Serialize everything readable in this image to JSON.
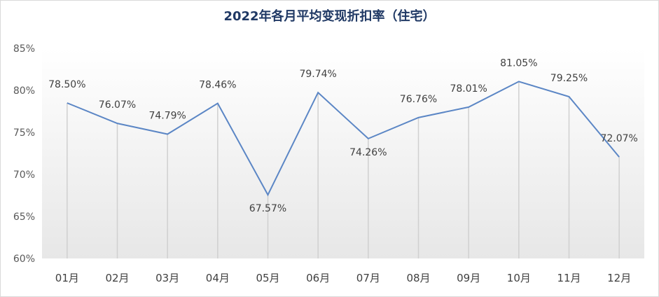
{
  "chart_data": {
    "type": "line",
    "title": "2022年各月平均变现折扣率（住宅）",
    "categories": [
      "01月",
      "02月",
      "03月",
      "04月",
      "05月",
      "06月",
      "07月",
      "08月",
      "09月",
      "10月",
      "11月",
      "12月"
    ],
    "series": [
      {
        "values": [
          78.5,
          76.07,
          74.79,
          78.46,
          67.57,
          79.74,
          74.26,
          76.76,
          78.01,
          81.05,
          79.25,
          72.07
        ]
      }
    ],
    "data_labels": [
      "78.50%",
      "76.07%",
      "74.79%",
      "78.46%",
      "67.57%",
      "79.74%",
      "74.26%",
      "76.76%",
      "78.01%",
      "81.05%",
      "79.25%",
      "72.07%"
    ],
    "y_ticks": [
      "60%",
      "65%",
      "70%",
      "75%",
      "80%",
      "85%"
    ],
    "ylim": [
      60,
      85
    ],
    "grid": false,
    "drop_lines": true,
    "colors": {
      "line": "#5b86c5",
      "title": "#1f3864",
      "drop_line": "#d0d0d0"
    }
  }
}
